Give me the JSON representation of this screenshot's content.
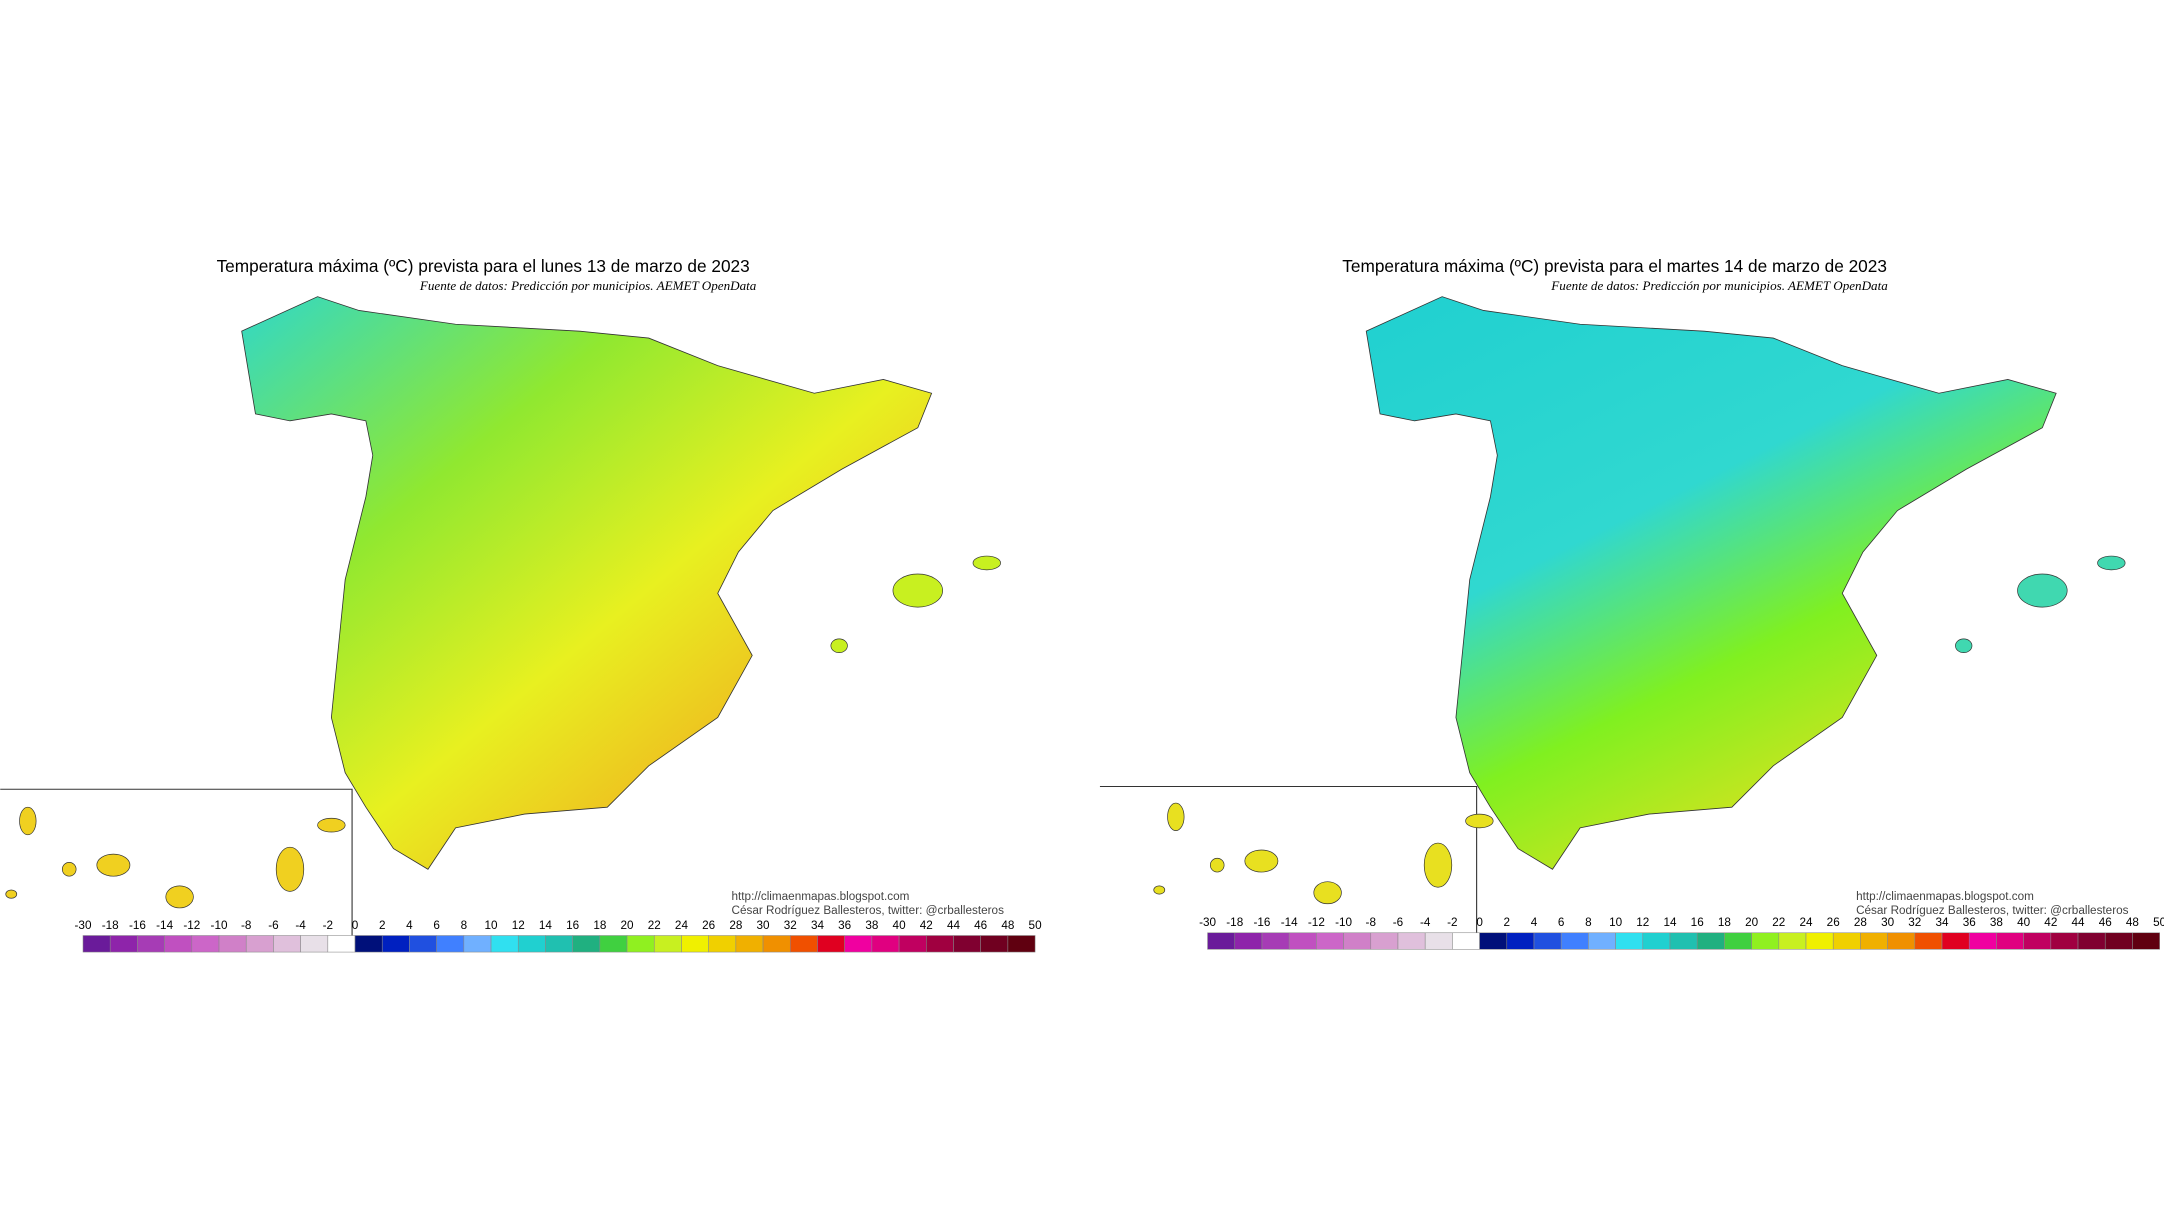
{
  "maps": [
    {
      "title": "Temperatura máxima (ºC) prevista para el lunes 13 de marzo de 2023",
      "source": "Fuente de datos: Predicción por municipios. AEMET OpenData",
      "credit_url": "http://climaenmapas.blogspot.com",
      "credit_author": "César Rodríguez Ballesteros, twitter: @crballesteros"
    },
    {
      "title": "Temperatura máxima (ºC) prevista para el martes 14 de marzo de 2023",
      "source": "Fuente de datos: Predicción por municipios. AEMET OpenData",
      "credit_url": "http://climaenmapas.blogspot.com",
      "credit_author": "César Rodríguez Ballesteros, twitter: @crballesteros"
    }
  ],
  "legend": {
    "ticks": [
      -30,
      -18,
      -16,
      -14,
      -12,
      -10,
      -8,
      -6,
      -4,
      -2,
      0,
      2,
      4,
      6,
      8,
      10,
      12,
      14,
      16,
      18,
      20,
      22,
      24,
      26,
      28,
      30,
      32,
      34,
      36,
      38,
      40,
      42,
      44,
      46,
      48,
      50
    ],
    "colors": [
      "#6a1b9a",
      "#8e24aa",
      "#a63cb5",
      "#c050c0",
      "#cc66c8",
      "#d080c8",
      "#d8a0d0",
      "#e0c0dc",
      "#e8e0e8",
      "#ffffff",
      "#00107a",
      "#0020c0",
      "#2050e0",
      "#4080ff",
      "#70b0ff",
      "#30e0f0",
      "#20d0d0",
      "#20c0b0",
      "#20b080",
      "#40d040",
      "#90f020",
      "#c8f020",
      "#f0f000",
      "#f0d000",
      "#f0b000",
      "#f09000",
      "#f05000",
      "#e00020",
      "#f000a0",
      "#e00080",
      "#c00060",
      "#a00040",
      "#800030",
      "#700020",
      "#600010"
    ]
  }
}
